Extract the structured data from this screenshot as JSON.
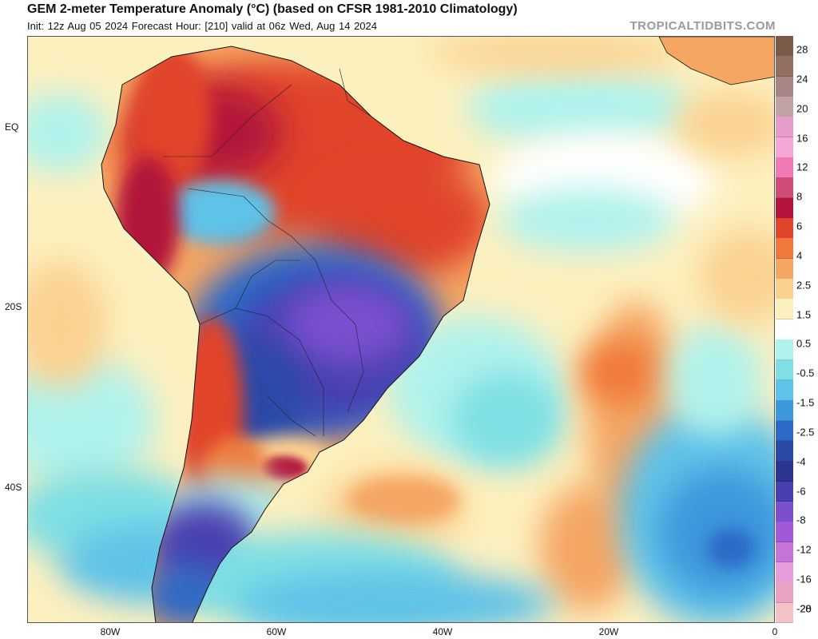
{
  "header": {
    "title": "GEM 2-meter Temperature Anomaly (°C) (based on CFSR 1981-2010 Climatology)",
    "subtitle": "Init: 12z Aug 05 2024   Forecast Hour: [210]   valid at 06z Wed, Aug 14 2024",
    "brand": "TROPICALTIDBITS.COM"
  },
  "map": {
    "lat_labels": [
      "EQ",
      "20S",
      "40S"
    ],
    "lon_labels": [
      "80W",
      "60W",
      "40W",
      "20W",
      "0"
    ]
  },
  "colorbar": {
    "unit": "°C",
    "labels": [
      "28",
      "24",
      "20",
      "16",
      "12",
      "8",
      "6",
      "4",
      "2.5",
      "1.5",
      "0.5",
      "-0.5",
      "-1.5",
      "-2.5",
      "-4",
      "-6",
      "-8",
      "-12",
      "-16",
      "-20",
      "-28"
    ],
    "colors": [
      "#7b5a48",
      "#936f64",
      "#a88584",
      "#c0a1a4",
      "#e59cc8",
      "#f4a6d6",
      "#f07ab3",
      "#d24c7a",
      "#b3143b",
      "#e0442b",
      "#f07838",
      "#f5a663",
      "#fbd190",
      "#fdf0bf",
      "#ffffff",
      "#b0f2ec",
      "#7edfe4",
      "#5fc2e8",
      "#3c97dc",
      "#2c69c8",
      "#2a4aa8",
      "#2b3590",
      "#4a3fb0",
      "#7a4fd0",
      "#a05ad8",
      "#c674d8",
      "#e79cdc",
      "#eaa2c4",
      "#f3c3c9"
    ]
  }
}
